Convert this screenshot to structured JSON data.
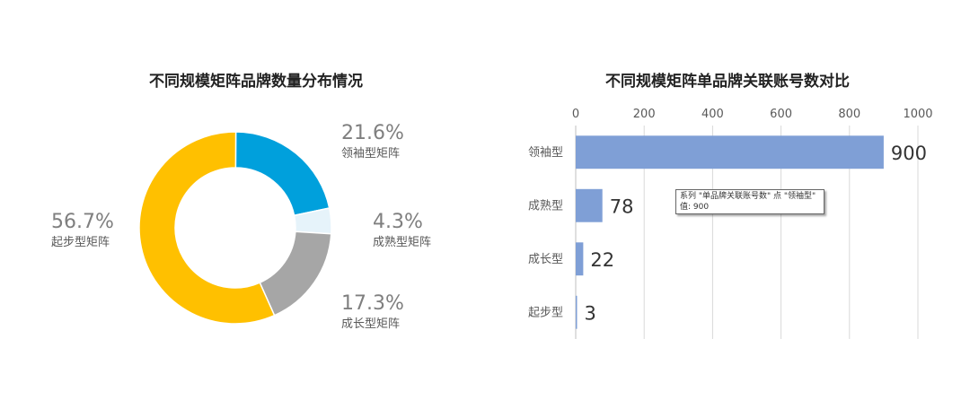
{
  "chart_data": [
    {
      "type": "pie",
      "title": "不同规模矩阵品牌数量分布情况",
      "categories": [
        "领袖型矩阵",
        "成熟型矩阵",
        "成长型矩阵",
        "起步型矩阵"
      ],
      "values": [
        21.6,
        4.3,
        17.3,
        56.7
      ],
      "labels": [
        "21.6%",
        "4.3%",
        "17.3%",
        "56.7%"
      ],
      "colors": [
        "#00a0dc",
        "#e6f3fa",
        "#a6a6a6",
        "#ffc000"
      ],
      "donut": true
    },
    {
      "type": "bar",
      "orientation": "horizontal",
      "title": "不同规模矩阵单品牌关联账号数对比",
      "categories": [
        "领袖型",
        "成熟型",
        "成长型",
        "起步型"
      ],
      "values": [
        900,
        78,
        22,
        3
      ],
      "xlim": [
        0,
        1000
      ],
      "xticks": [
        0,
        200,
        400,
        600,
        800,
        1000
      ],
      "axis_position": "top",
      "grid": true,
      "color": "#7f9fd6",
      "tooltip": {
        "line1": "系列 \"单品牌关联账号数\" 点 \"领袖型\"",
        "line2": "值: 900"
      }
    }
  ]
}
